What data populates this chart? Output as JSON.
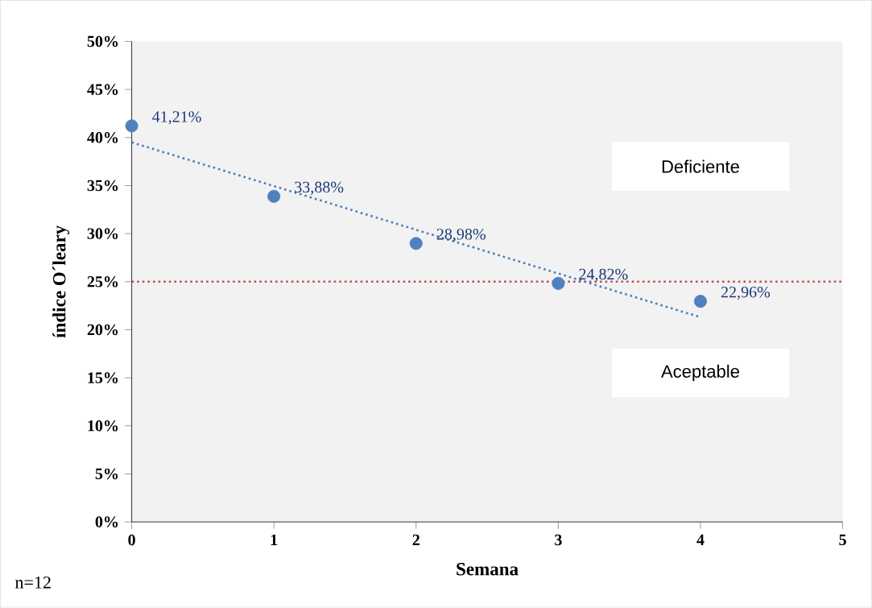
{
  "chart_data": {
    "type": "scatter",
    "xlabel": "Semana",
    "ylabel": "índice O´leary",
    "xlim": [
      0,
      5
    ],
    "xticks": [
      0,
      1,
      2,
      3,
      4,
      5
    ],
    "ylim": [
      0,
      50
    ],
    "yticks": [
      {
        "value": 0,
        "label": "0%"
      },
      {
        "value": 5,
        "label": "5%"
      },
      {
        "value": 10,
        "label": "10%"
      },
      {
        "value": 15,
        "label": "15%"
      },
      {
        "value": 20,
        "label": "20%"
      },
      {
        "value": 25,
        "label": "25%"
      },
      {
        "value": 30,
        "label": "30%"
      },
      {
        "value": 35,
        "label": "35%"
      },
      {
        "value": 40,
        "label": "40%"
      },
      {
        "value": 45,
        "label": "45%"
      },
      {
        "value": 50,
        "label": "50%"
      }
    ],
    "marker": "circle",
    "series": [
      {
        "color": "#4f81bd",
        "x": [
          0,
          1,
          2,
          3,
          4
        ],
        "values": [
          41.21,
          33.88,
          28.98,
          24.82,
          22.96
        ],
        "value_labels": [
          "41,21%",
          "33,88%",
          "28,98%",
          "24,82%",
          "22,96%"
        ]
      },
      {
        "type": "line",
        "color": "#4a7ebb",
        "line_style": "dotted",
        "marker": "none",
        "x": [
          0,
          4
        ],
        "values": [
          39.5,
          21.3
        ]
      }
    ],
    "ref_lines": [
      {
        "axis": "y",
        "value": 25,
        "color": "#c0504d",
        "line_style": "dotted"
      }
    ],
    "annotations": [
      "Deficiente",
      "Aceptable",
      "n=12"
    ]
  }
}
